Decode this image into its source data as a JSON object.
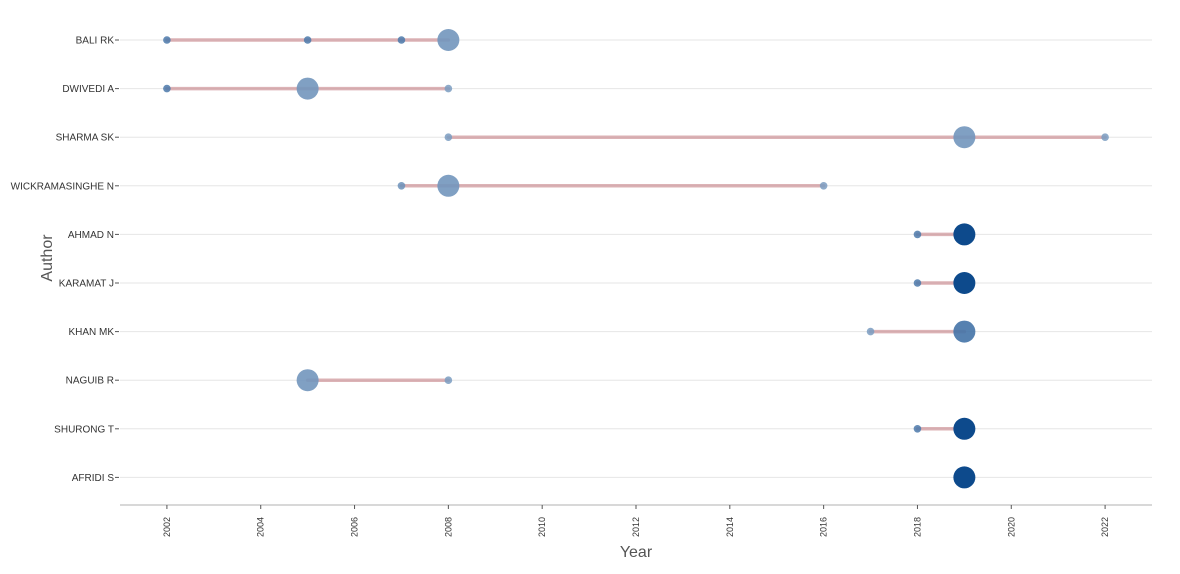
{
  "chart_data": {
    "type": "scatter",
    "xlabel": "Year",
    "ylabel": "Author",
    "xlim": [
      2001,
      2023
    ],
    "xticks": [
      2002,
      2004,
      2006,
      2008,
      2010,
      2012,
      2014,
      2016,
      2018,
      2020,
      2022
    ],
    "grid": true,
    "segment_color": "#c98a8f",
    "dark_point_color": "#0d4a8c",
    "light_point_color": "#a9bfd8",
    "authors": [
      {
        "name": "BALI RK",
        "span": [
          2002,
          2008
        ],
        "points": [
          {
            "year": 2002,
            "size": 1,
            "intensity": 0.6
          },
          {
            "year": 2005,
            "size": 1,
            "intensity": 0.6
          },
          {
            "year": 2007,
            "size": 1,
            "intensity": 0.6
          },
          {
            "year": 2008,
            "size": 3,
            "intensity": 0.35
          }
        ]
      },
      {
        "name": "DWIVEDI A",
        "span": [
          2002,
          2008
        ],
        "points": [
          {
            "year": 2002,
            "size": 1,
            "intensity": 0.6
          },
          {
            "year": 2005,
            "size": 3,
            "intensity": 0.35
          },
          {
            "year": 2008,
            "size": 1,
            "intensity": 0.3
          }
        ]
      },
      {
        "name": "SHARMA SK",
        "span": [
          2008,
          2022
        ],
        "points": [
          {
            "year": 2008,
            "size": 1,
            "intensity": 0.3
          },
          {
            "year": 2019,
            "size": 3,
            "intensity": 0.35
          },
          {
            "year": 2022,
            "size": 1,
            "intensity": 0.3
          }
        ]
      },
      {
        "name": "WICKRAMASINGHE N",
        "span": [
          2007,
          2016
        ],
        "points": [
          {
            "year": 2007,
            "size": 1,
            "intensity": 0.4
          },
          {
            "year": 2008,
            "size": 3,
            "intensity": 0.35
          },
          {
            "year": 2016,
            "size": 1,
            "intensity": 0.3
          }
        ]
      },
      {
        "name": "AHMAD N",
        "span": [
          2018,
          2019
        ],
        "points": [
          {
            "year": 2018,
            "size": 1,
            "intensity": 0.6
          },
          {
            "year": 2019,
            "size": 3,
            "intensity": 1.0
          }
        ]
      },
      {
        "name": "KARAMAT J",
        "span": [
          2018,
          2019
        ],
        "points": [
          {
            "year": 2018,
            "size": 1,
            "intensity": 0.6
          },
          {
            "year": 2019,
            "size": 3,
            "intensity": 1.0
          }
        ]
      },
      {
        "name": "KHAN MK",
        "span": [
          2017,
          2019
        ],
        "points": [
          {
            "year": 2017,
            "size": 1,
            "intensity": 0.3
          },
          {
            "year": 2019,
            "size": 3,
            "intensity": 0.65
          }
        ]
      },
      {
        "name": "NAGUIB R",
        "span": [
          2005,
          2008
        ],
        "points": [
          {
            "year": 2005,
            "size": 3,
            "intensity": 0.35
          },
          {
            "year": 2008,
            "size": 1,
            "intensity": 0.3
          }
        ]
      },
      {
        "name": "SHURONG T",
        "span": [
          2018,
          2019
        ],
        "points": [
          {
            "year": 2018,
            "size": 1,
            "intensity": 0.6
          },
          {
            "year": 2019,
            "size": 3,
            "intensity": 1.0
          }
        ]
      },
      {
        "name": "AFRIDI S",
        "span": [
          2019,
          2019
        ],
        "points": [
          {
            "year": 2019,
            "size": 3,
            "intensity": 1.0
          }
        ]
      }
    ]
  }
}
